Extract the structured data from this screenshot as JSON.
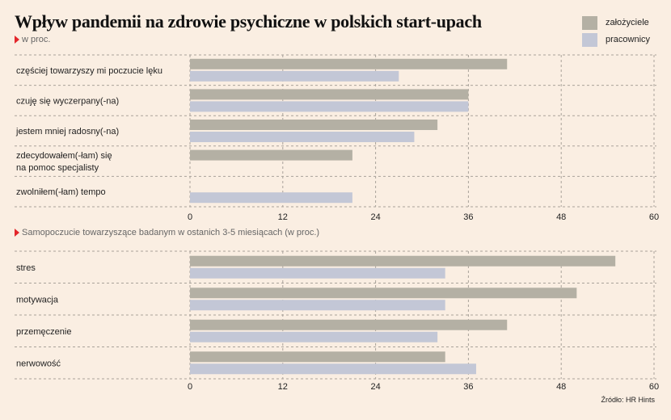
{
  "title": "Wpływ pandemii na zdrowie psychiczne w polskich start-upach",
  "legend": {
    "items": [
      {
        "label": "założyciele",
        "color": "#b4b0a4"
      },
      {
        "label": "pracownicy",
        "color": "#c3c7d6"
      }
    ]
  },
  "source": "Źródło: HR Hints",
  "chart_data": [
    {
      "type": "bar",
      "orientation": "horizontal",
      "subtitle": "w proc.",
      "categories": [
        [
          "częściej towarzyszy mi poczucie lęku"
        ],
        [
          "czuję się wyczerpany(-na)"
        ],
        [
          "jestem mniej radosny(-na)"
        ],
        [
          "zdecydowałem(-łam) się",
          "na pomoc specjalisty"
        ],
        [
          "zwolniłem(-łam) tempo"
        ]
      ],
      "series": [
        {
          "name": "założyciele",
          "values": [
            41,
            36,
            32,
            21,
            null
          ]
        },
        {
          "name": "pracownicy",
          "values": [
            27,
            36,
            29,
            null,
            21
          ]
        }
      ],
      "xlim": [
        0,
        60
      ],
      "xticks": [
        0,
        12,
        24,
        36,
        48,
        60
      ],
      "grid": true
    },
    {
      "type": "bar",
      "orientation": "horizontal",
      "subtitle": "Samopoczucie towarzyszące badanym w ostanich 3-5 miesiącach (w proc.)",
      "categories": [
        [
          "stres"
        ],
        [
          "motywacja"
        ],
        [
          "przemęczenie"
        ],
        [
          "nerwowość"
        ]
      ],
      "series": [
        {
          "name": "założyciele",
          "values": [
            55,
            50,
            41,
            33
          ]
        },
        {
          "name": "pracownicy",
          "values": [
            33,
            33,
            32,
            37
          ]
        }
      ],
      "xlim": [
        0,
        60
      ],
      "xticks": [
        0,
        12,
        24,
        36,
        48,
        60
      ],
      "grid": true
    }
  ]
}
